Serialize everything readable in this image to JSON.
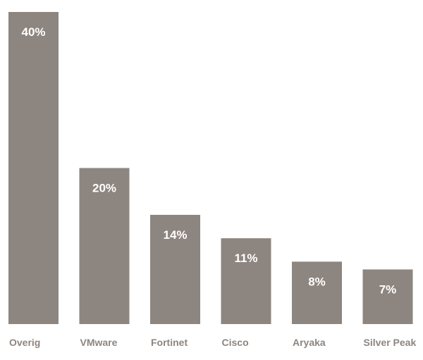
{
  "chart_data": {
    "type": "bar",
    "categories": [
      "Overig",
      "VMware",
      "Fortinet",
      "Cisco",
      "Aryaka",
      "Silver Peak"
    ],
    "values": [
      40,
      20,
      14,
      11,
      8,
      7
    ],
    "value_labels": [
      "40%",
      "20%",
      "14%",
      "11%",
      "8%",
      "7%"
    ],
    "ylim": [
      0,
      40
    ],
    "grid": false,
    "legend": "none"
  },
  "colors": {
    "bar": "#8d8580",
    "value_text": "#ffffff",
    "label_text": "#8d8580",
    "background": "#ffffff"
  }
}
